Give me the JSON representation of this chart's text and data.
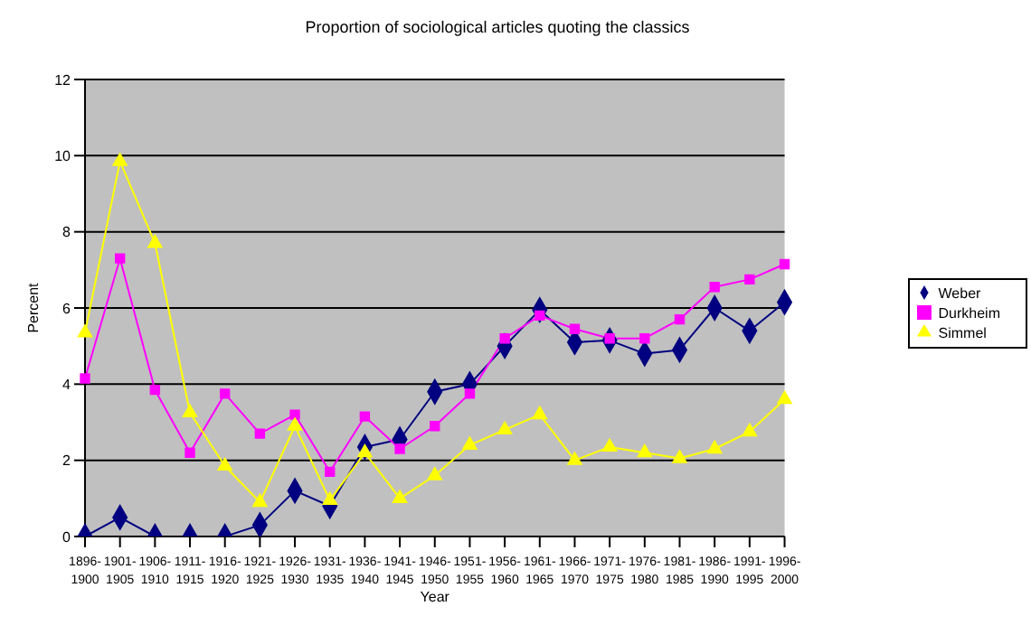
{
  "chart_data": {
    "type": "line",
    "title": "Proportion of sociological articles quoting the classics",
    "xlabel": "Year",
    "ylabel": "Percent",
    "categories": [
      "1896-1900",
      "1901-1905",
      "1906-1910",
      "1911-1915",
      "1916-1920",
      "1921-1925",
      "1926-1930",
      "1931-1935",
      "1936-1940",
      "1941-1945",
      "1946-1950",
      "1951-1955",
      "1956-1960",
      "1961-1965",
      "1966-1970",
      "1971-1975",
      "1976-1980",
      "1981-1985",
      "1986-1990",
      "1991-1995",
      "1996-2000"
    ],
    "series": [
      {
        "name": "Weber",
        "color": "#000080",
        "marker": "diamond",
        "values": [
          0,
          0.5,
          0,
          0,
          0,
          0.3,
          1.2,
          0.8,
          2.35,
          2.55,
          3.8,
          4.0,
          5.0,
          5.95,
          5.1,
          5.15,
          4.8,
          4.9,
          6.0,
          5.4,
          6.15
        ]
      },
      {
        "name": "Durkheim",
        "color": "#ff00ff",
        "marker": "square",
        "values": [
          4.15,
          7.3,
          3.85,
          2.2,
          3.75,
          2.7,
          3.2,
          1.7,
          3.15,
          2.3,
          2.9,
          3.75,
          5.2,
          5.8,
          5.45,
          5.2,
          5.2,
          5.7,
          6.55,
          6.75,
          7.15
        ]
      },
      {
        "name": "Simmel",
        "color": "#ffff00",
        "marker": "triangle",
        "values": [
          5.35,
          9.85,
          7.7,
          3.25,
          1.85,
          0.9,
          2.9,
          0.95,
          2.2,
          1.0,
          1.6,
          2.4,
          2.8,
          3.2,
          2.0,
          2.35,
          2.2,
          2.05,
          2.3,
          2.75,
          3.6
        ]
      }
    ],
    "ylim": [
      0,
      12
    ],
    "yticks": [
      0,
      2,
      4,
      6,
      8,
      10,
      12
    ],
    "grid": "y",
    "legend": "right"
  }
}
